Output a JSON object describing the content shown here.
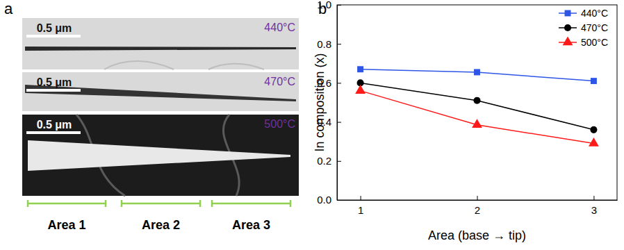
{
  "panel_labels": [
    "a",
    "b"
  ],
  "image_panel": {
    "images": [
      {
        "scale_bar": "0.5 μm",
        "temperature": "440°C"
      },
      {
        "scale_bar": "0.5 μm",
        "temperature": "470°C"
      },
      {
        "scale_bar": "0.5 μm",
        "temperature": "500°C"
      }
    ],
    "areas": [
      "Area 1",
      "Area 2",
      "Area 3"
    ]
  },
  "chart_data": {
    "type": "line",
    "x_label": "Area (base → tip)",
    "y_label": "In composition (x)",
    "x": [
      1,
      2,
      3
    ],
    "xlim": [
      0.8,
      3.2
    ],
    "xticks": [
      1,
      2,
      3
    ],
    "ylim": [
      0,
      1
    ],
    "yticks": [
      {
        "value": 0,
        "label": "0.0"
      },
      {
        "value": 0.2,
        "label": "0.2"
      },
      {
        "value": 0.4,
        "label": "0.4"
      },
      {
        "value": 0.6,
        "label": "0.6"
      },
      {
        "value": 0.8,
        "label": "0.8"
      },
      {
        "value": 1,
        "label": "1.0"
      }
    ],
    "legend": "top-right",
    "series": [
      {
        "name": "440°C",
        "color": "#2f55e6",
        "marker": "square",
        "values": [
          0.67,
          0.655,
          0.61
        ]
      },
      {
        "name": "470°C",
        "color": "#000000",
        "marker": "circle",
        "values": [
          0.6,
          0.51,
          0.36
        ]
      },
      {
        "name": "500°C",
        "color": "#ff1a1a",
        "marker": "triangle",
        "values": [
          0.56,
          0.385,
          0.29
        ]
      }
    ]
  }
}
